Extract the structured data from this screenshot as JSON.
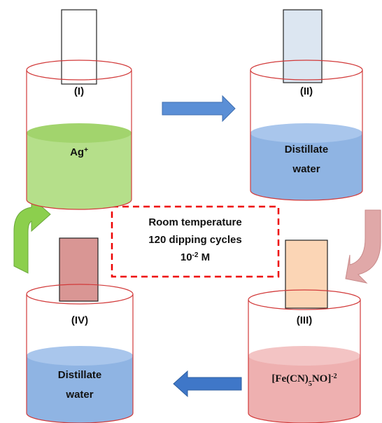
{
  "beakers": [
    {
      "label": "(I)",
      "solution": [
        [
          {
            "text": "Ag"
          },
          {
            "text": "+",
            "style": "sup"
          }
        ]
      ]
    },
    {
      "label": "(II)",
      "solution": [
        [
          {
            "text": "Distillate"
          }
        ],
        [
          {
            "text": "water"
          }
        ]
      ]
    },
    {
      "label": "(III)",
      "solution": [
        [
          {
            "text": "[Fe(CN)"
          },
          {
            "text": "5",
            "style": "sub"
          },
          {
            "text": "NO]"
          },
          {
            "text": "-2",
            "style": "sup"
          }
        ]
      ]
    },
    {
      "label": "(IV)",
      "solution": [
        [
          {
            "text": "Distillate"
          }
        ],
        [
          {
            "text": "water"
          }
        ]
      ]
    }
  ],
  "conditions": [
    [
      {
        "text": "Room temperature"
      }
    ],
    [
      {
        "text": "120 dipping cycles"
      }
    ],
    [
      {
        "text": "10"
      },
      {
        "text": "-2",
        "style": "sup"
      },
      {
        "text": " M"
      }
    ]
  ]
}
